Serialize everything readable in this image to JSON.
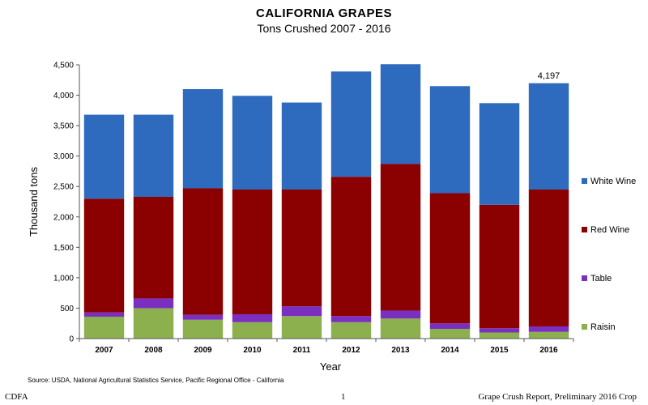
{
  "chart_data": {
    "type": "bar",
    "stacked": true,
    "title": "CALIFORNIA GRAPES",
    "subtitle": "Tons Crushed  2007 - 2016",
    "xlabel": "Year",
    "ylabel": "Thousand tons",
    "ylim": [
      0,
      4500
    ],
    "yticks": [
      "0",
      "500",
      "1,000",
      "1,500",
      "2,000",
      "2,500",
      "3,000",
      "3,500",
      "4,000",
      "4,500"
    ],
    "categories": [
      "2007",
      "2008",
      "2009",
      "2010",
      "2011",
      "2012",
      "2013",
      "2014",
      "2015",
      "2016"
    ],
    "series": [
      {
        "name": "Raisin",
        "color": "#8db04f",
        "values": [
          360,
          500,
          310,
          270,
          370,
          270,
          330,
          160,
          100,
          110
        ]
      },
      {
        "name": "Table",
        "color": "#7a2fc0",
        "values": [
          70,
          160,
          80,
          130,
          160,
          100,
          130,
          90,
          70,
          90
        ]
      },
      {
        "name": "Red Wine",
        "color": "#8b0000",
        "values": [
          1870,
          1670,
          2080,
          2050,
          1920,
          2290,
          2410,
          2140,
          2030,
          2250
        ]
      },
      {
        "name": "White Wine",
        "color": "#2e6bbf",
        "values": [
          1380,
          1350,
          1630,
          1540,
          1430,
          1730,
          1640,
          1760,
          1670,
          1747
        ]
      }
    ],
    "annotations": [
      {
        "category": "2016",
        "text": "4,197"
      }
    ],
    "legend": "right",
    "grid": false
  },
  "source": "Source: USDA, National Agricultural Statistics Service, Pacific Regional Office - California",
  "footer": {
    "left": "CDFA",
    "center": "1",
    "right": "Grape Crush Report, Preliminary 2016 Crop"
  }
}
